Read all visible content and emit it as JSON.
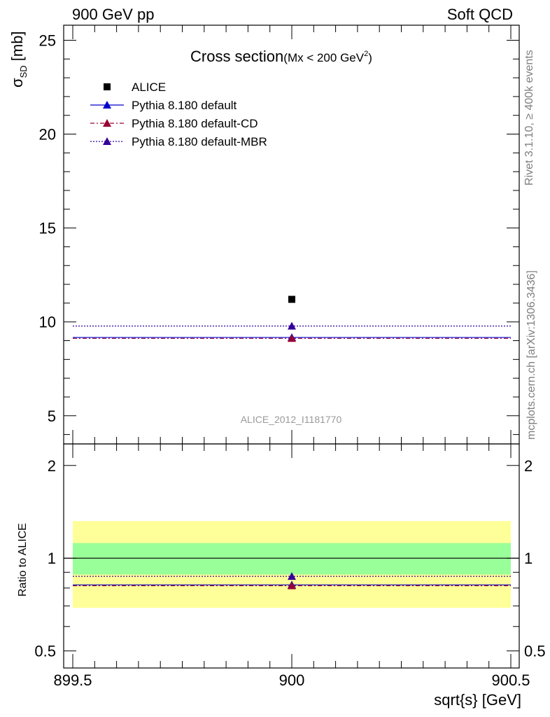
{
  "header": {
    "left": "900 GeV pp",
    "right": "Soft QCD"
  },
  "side_text": {
    "rivet": "Rivet 3.1.10, ≥ 400k events",
    "mcplots": "mcplots.cern.ch [arXiv:1306.3436]"
  },
  "colors": {
    "alice": "#000000",
    "default": "#0000cc",
    "default_cd": "#990033",
    "default_mbr": "#330099",
    "band_inner": "#99ff99",
    "band_outer": "#ffff99",
    "watermark": "#999999"
  },
  "chart_data": [
    {
      "type": "scatter",
      "title_main": "Cross section",
      "title_sub": "(Mx < 200 GeV",
      "title_sup": "2",
      "title_end": ")",
      "ylabel": "σ",
      "ylabel_sub": "SD",
      "ylabel_unit": " [mb]",
      "xlim": [
        899.5,
        900.5
      ],
      "ylim": [
        3.5,
        25.8
      ],
      "yticks": [
        5,
        10,
        15,
        20,
        25
      ],
      "watermark": "ALICE_2012_I1181770",
      "legend_position": "top-left",
      "series": [
        {
          "name": "ALICE",
          "x": [
            900
          ],
          "y": [
            11.2
          ],
          "marker": "square",
          "color": "#000000"
        },
        {
          "name": "Pythia 8.180 default",
          "x": [
            900
          ],
          "y": [
            9.17
          ],
          "marker": "triangle",
          "line": "solid",
          "color": "#0000cc"
        },
        {
          "name": "Pythia 8.180 default-CD",
          "x": [
            900
          ],
          "y": [
            9.12
          ],
          "marker": "triangle",
          "line": "dashdot",
          "color": "#990033"
        },
        {
          "name": "Pythia 8.180 default-MBR",
          "x": [
            900
          ],
          "y": [
            9.78
          ],
          "marker": "triangle",
          "line": "dotted",
          "color": "#330099"
        }
      ]
    },
    {
      "type": "scatter",
      "ylabel": "Ratio to ALICE",
      "xlabel": "sqrt{s} [GeV]",
      "xlim": [
        899.5,
        900.5
      ],
      "ylim": [
        0.44,
        2.35
      ],
      "log_y": true,
      "yticks": [
        0.5,
        1,
        2
      ],
      "ytick_labels": [
        "0.5",
        "1",
        "2"
      ],
      "xticks": [
        899.5,
        900,
        900.5
      ],
      "xtick_labels": [
        "899.5",
        "900",
        "900.5"
      ],
      "bands": {
        "inner": [
          0.885,
          1.12
        ],
        "outer": [
          0.69,
          1.32
        ]
      },
      "series": [
        {
          "name": "Pythia 8.180 default",
          "x": [
            900
          ],
          "y": [
            0.819
          ],
          "color": "#0000cc"
        },
        {
          "name": "Pythia 8.180 default-CD",
          "x": [
            900
          ],
          "y": [
            0.814
          ],
          "color": "#990033"
        },
        {
          "name": "Pythia 8.180 default-MBR",
          "x": [
            900
          ],
          "y": [
            0.873
          ],
          "color": "#330099"
        }
      ]
    }
  ]
}
